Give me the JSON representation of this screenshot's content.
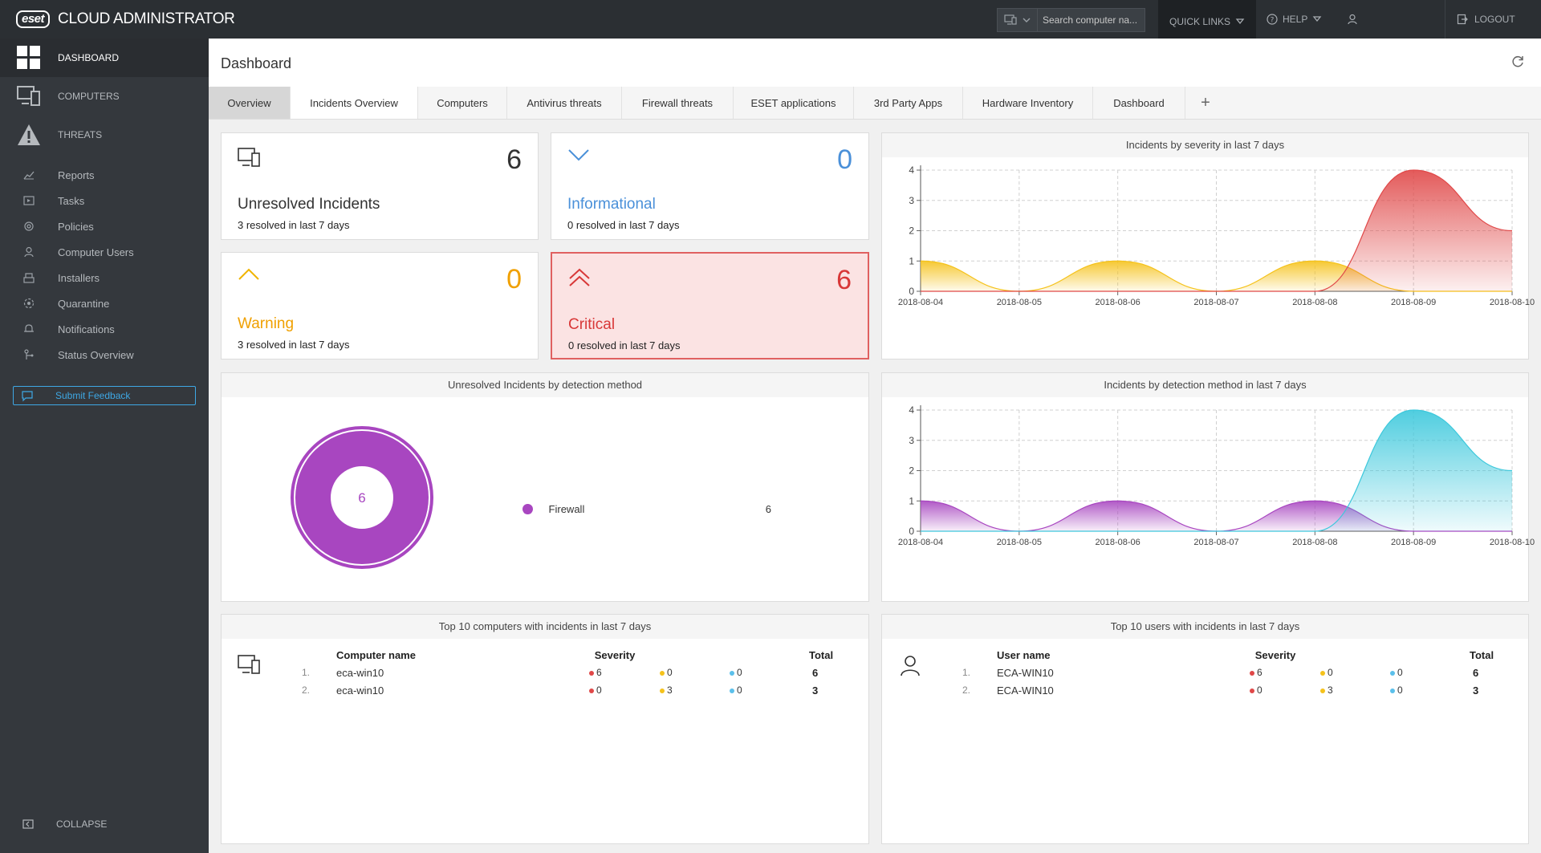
{
  "app": {
    "logo_badge": "eset",
    "title": "CLOUD ADMINISTRATOR"
  },
  "topbar": {
    "search_placeholder": "Search computer na...",
    "quick_links": "QUICK LINKS",
    "help": "HELP",
    "logout": "LOGOUT"
  },
  "sidebar": {
    "main": [
      {
        "label": "DASHBOARD",
        "icon": "dashboard-icon"
      },
      {
        "label": "COMPUTERS",
        "icon": "computers-icon"
      },
      {
        "label": "THREATS",
        "icon": "threats-icon"
      }
    ],
    "sub": [
      {
        "label": "Reports",
        "icon": "reports-icon"
      },
      {
        "label": "Tasks",
        "icon": "tasks-icon"
      },
      {
        "label": "Policies",
        "icon": "policies-icon"
      },
      {
        "label": "Computer Users",
        "icon": "user-icon"
      },
      {
        "label": "Installers",
        "icon": "installers-icon"
      },
      {
        "label": "Quarantine",
        "icon": "quarantine-icon"
      },
      {
        "label": "Notifications",
        "icon": "notifications-icon"
      },
      {
        "label": "Status Overview",
        "icon": "status-icon"
      }
    ],
    "feedback": "Submit Feedback",
    "collapse": "COLLAPSE"
  },
  "page": {
    "title": "Dashboard"
  },
  "tabs": [
    {
      "label": "Overview"
    },
    {
      "label": "Incidents Overview"
    },
    {
      "label": "Computers"
    },
    {
      "label": "Antivirus threats"
    },
    {
      "label": "Firewall threats"
    },
    {
      "label": "ESET applications"
    },
    {
      "label": "3rd Party Apps"
    },
    {
      "label": "Hardware Inventory"
    },
    {
      "label": "Dashboard"
    },
    {
      "label": "+"
    }
  ],
  "kpis": {
    "unresolved": {
      "value": "6",
      "label": "Unresolved Incidents",
      "sub": "3 resolved in last 7 days"
    },
    "informational": {
      "value": "0",
      "label": "Informational",
      "sub": "0 resolved in last 7 days"
    },
    "warning": {
      "value": "0",
      "label": "Warning",
      "sub": "3 resolved in last 7 days"
    },
    "critical": {
      "value": "6",
      "label": "Critical",
      "sub": "0 resolved in last 7 days"
    }
  },
  "colors": {
    "critical": "#e04848",
    "warning": "#f5c21b",
    "info": "#4a90d9",
    "firewall": "#a846c0",
    "cyan": "#3cc8dc"
  },
  "chart_data": [
    {
      "type": "area",
      "title": "Incidents by severity in last 7 days",
      "x": [
        "2018-08-04",
        "2018-08-05",
        "2018-08-06",
        "2018-08-07",
        "2018-08-08",
        "2018-08-09",
        "2018-08-10"
      ],
      "ylim": [
        0,
        4
      ],
      "yticks": [
        "0",
        "1",
        "2",
        "3",
        "4"
      ],
      "series": [
        {
          "color": "#f5c21b",
          "values": [
            1,
            0,
            1,
            0,
            1,
            0,
            0
          ]
        },
        {
          "color": "#e04848",
          "values": [
            0,
            0,
            0,
            0,
            0,
            4,
            2
          ]
        }
      ],
      "grid": true
    },
    {
      "type": "pie",
      "title": "Unresolved Incidents by detection method",
      "center_label": "6",
      "slices": [
        {
          "label": "Firewall",
          "value": 6,
          "color": "#a846c0"
        }
      ]
    },
    {
      "type": "area",
      "title": "Incidents by detection method in last 7 days",
      "x": [
        "2018-08-04",
        "2018-08-05",
        "2018-08-06",
        "2018-08-07",
        "2018-08-08",
        "2018-08-09",
        "2018-08-10"
      ],
      "ylim": [
        0,
        4
      ],
      "yticks": [
        "0",
        "1",
        "2",
        "3",
        "4"
      ],
      "series": [
        {
          "color": "#a846c0",
          "values": [
            1,
            0,
            1,
            0,
            1,
            0,
            0
          ]
        },
        {
          "color": "#3cc8dc",
          "values": [
            0,
            0,
            0,
            0,
            0,
            4,
            2
          ]
        }
      ],
      "grid": true
    },
    {
      "type": "table",
      "title": "Top 10 computers with incidents in last 7 days",
      "headers": {
        "name": "Computer name",
        "severity": "Severity",
        "total": "Total"
      },
      "rows": [
        {
          "rank": "1.",
          "name": "eca-win10",
          "crit": "6",
          "warn": "0",
          "info": "0",
          "total": "6"
        },
        {
          "rank": "2.",
          "name": "eca-win10",
          "crit": "0",
          "warn": "3",
          "info": "0",
          "total": "3"
        }
      ]
    },
    {
      "type": "table",
      "title": "Top 10 users with incidents in last 7 days",
      "headers": {
        "name": "User name",
        "severity": "Severity",
        "total": "Total"
      },
      "rows": [
        {
          "rank": "1.",
          "name": "ECA-WIN10",
          "crit": "6",
          "warn": "0",
          "info": "0",
          "total": "6"
        },
        {
          "rank": "2.",
          "name": "ECA-WIN10",
          "crit": "0",
          "warn": "3",
          "info": "0",
          "total": "3"
        }
      ]
    }
  ]
}
